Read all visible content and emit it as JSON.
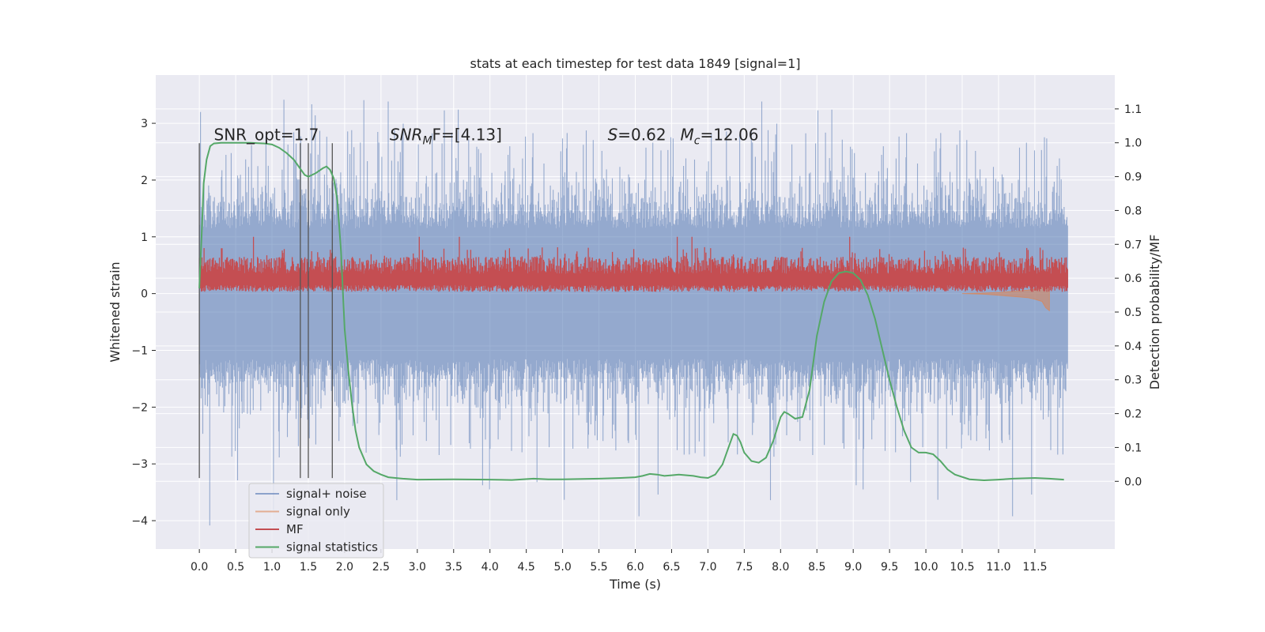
{
  "chart_data": {
    "type": "line",
    "title": "stats at each timestep for test data 1849 [signal=1]",
    "xlabel": "Time (s)",
    "ylabel_left": "Whitened strain",
    "ylabel_right": "Detection probability/MF",
    "xlim": [
      -0.6,
      12.6
    ],
    "ylim_left": [
      -4.5,
      3.85
    ],
    "ylim_right": [
      -0.2,
      1.2
    ],
    "x_ticks": [
      "0.0",
      "0.5",
      "1.0",
      "1.5",
      "2.0",
      "2.5",
      "3.0",
      "3.5",
      "4.0",
      "4.5",
      "5.0",
      "5.5",
      "6.0",
      "6.5",
      "7.0",
      "7.5",
      "8.0",
      "8.5",
      "9.0",
      "9.5",
      "10.0",
      "10.5",
      "11.0",
      "11.5"
    ],
    "y_ticks_left": [
      3,
      2,
      1,
      0,
      -1,
      -2,
      -3,
      -4
    ],
    "y_tick_labels_left": [
      "3",
      "2",
      "1",
      "0",
      "−1",
      "−2",
      "−3",
      "−4"
    ],
    "y_ticks_right": [
      "1.1",
      "1.0",
      "0.9",
      "0.8",
      "0.7",
      "0.6",
      "0.5",
      "0.4",
      "0.3",
      "0.2",
      "0.1",
      "0.0"
    ],
    "grid": true,
    "legend_position": "lower-left",
    "annotations": {
      "snr_opt": "SNR_opt=1.7",
      "snr_mf_sym": "SNR",
      "snr_mf_sub": "M",
      "snr_mf_tail": "F=[4.13]",
      "s_sym": "S",
      "s_val": "=0.62",
      "mc_sym": "M",
      "mc_sub": "c",
      "mc_val": "=12.06"
    },
    "vertical_markers": [
      {
        "x": 0.0,
        "y_top": 2.65,
        "y_bottom": -3.25
      },
      {
        "x": 1.39,
        "y_top": 2.65,
        "y_bottom": -3.25
      },
      {
        "x": 1.5,
        "y_top": 2.65,
        "y_bottom": -3.25
      },
      {
        "x": 1.83,
        "y_top": 2.65,
        "y_bottom": -3.25
      }
    ],
    "series": [
      {
        "name": "signal+ noise",
        "axis": "left",
        "color": "#4c72b0",
        "kind": "noise_band",
        "x_range": [
          0.0,
          11.95
        ],
        "typical_range": [
          -1.5,
          1.5
        ],
        "extremes": [
          -4.1,
          3.45
        ]
      },
      {
        "name": "signal only",
        "axis": "left",
        "color": "#dd8452",
        "x": [
          10.5,
          10.8,
          11.0,
          11.2,
          11.4,
          11.5,
          11.6,
          11.65,
          11.7
        ],
        "y_upper": [
          0.0,
          0.01,
          0.02,
          0.04,
          0.06,
          0.08,
          0.1,
          0.13,
          0.12
        ],
        "y_lower": [
          0.0,
          -0.01,
          -0.03,
          -0.05,
          -0.07,
          -0.1,
          -0.14,
          -0.25,
          -0.3
        ]
      },
      {
        "name": "MF",
        "axis": "left",
        "color": "#c44e52",
        "kind": "noise_band",
        "x_range": [
          0.0,
          11.95
        ],
        "typical_range": [
          0.05,
          0.65
        ],
        "extremes": [
          0.0,
          1.0
        ]
      },
      {
        "name": "signal statistics",
        "axis": "right",
        "color": "#55a868",
        "x": [
          0.0,
          0.03,
          0.06,
          0.1,
          0.15,
          0.2,
          0.3,
          0.5,
          0.7,
          0.9,
          1.0,
          1.1,
          1.2,
          1.3,
          1.4,
          1.45,
          1.5,
          1.6,
          1.7,
          1.75,
          1.8,
          1.85,
          1.9,
          1.95,
          2.0,
          2.05,
          2.1,
          2.15,
          2.2,
          2.3,
          2.4,
          2.5,
          2.6,
          2.8,
          3.0,
          3.5,
          4.0,
          4.3,
          4.6,
          4.8,
          5.0,
          5.5,
          5.8,
          6.0,
          6.1,
          6.2,
          6.3,
          6.4,
          6.5,
          6.6,
          6.8,
          6.9,
          7.0,
          7.1,
          7.2,
          7.3,
          7.35,
          7.4,
          7.45,
          7.5,
          7.6,
          7.7,
          7.8,
          7.9,
          8.0,
          8.05,
          8.1,
          8.2,
          8.3,
          8.4,
          8.5,
          8.6,
          8.7,
          8.8,
          8.9,
          9.0,
          9.1,
          9.2,
          9.3,
          9.4,
          9.5,
          9.6,
          9.7,
          9.8,
          9.9,
          10.0,
          10.1,
          10.2,
          10.3,
          10.4,
          10.6,
          10.8,
          11.0,
          11.2,
          11.5,
          11.7,
          11.9
        ],
        "y": [
          0.57,
          0.72,
          0.88,
          0.95,
          0.99,
          0.998,
          1.0,
          1.0,
          1.0,
          0.998,
          0.995,
          0.985,
          0.97,
          0.95,
          0.92,
          0.905,
          0.9,
          0.91,
          0.925,
          0.93,
          0.92,
          0.895,
          0.83,
          0.68,
          0.45,
          0.33,
          0.23,
          0.15,
          0.1,
          0.05,
          0.03,
          0.02,
          0.012,
          0.008,
          0.005,
          0.006,
          0.005,
          0.004,
          0.008,
          0.006,
          0.006,
          0.008,
          0.01,
          0.012,
          0.016,
          0.022,
          0.02,
          0.016,
          0.018,
          0.02,
          0.016,
          0.012,
          0.01,
          0.02,
          0.05,
          0.11,
          0.14,
          0.135,
          0.115,
          0.085,
          0.06,
          0.055,
          0.07,
          0.12,
          0.19,
          0.205,
          0.2,
          0.185,
          0.19,
          0.27,
          0.43,
          0.53,
          0.59,
          0.615,
          0.62,
          0.615,
          0.595,
          0.55,
          0.48,
          0.39,
          0.3,
          0.22,
          0.15,
          0.1,
          0.085,
          0.085,
          0.08,
          0.06,
          0.035,
          0.02,
          0.006,
          0.003,
          0.005,
          0.008,
          0.01,
          0.008,
          0.005
        ]
      }
    ]
  }
}
